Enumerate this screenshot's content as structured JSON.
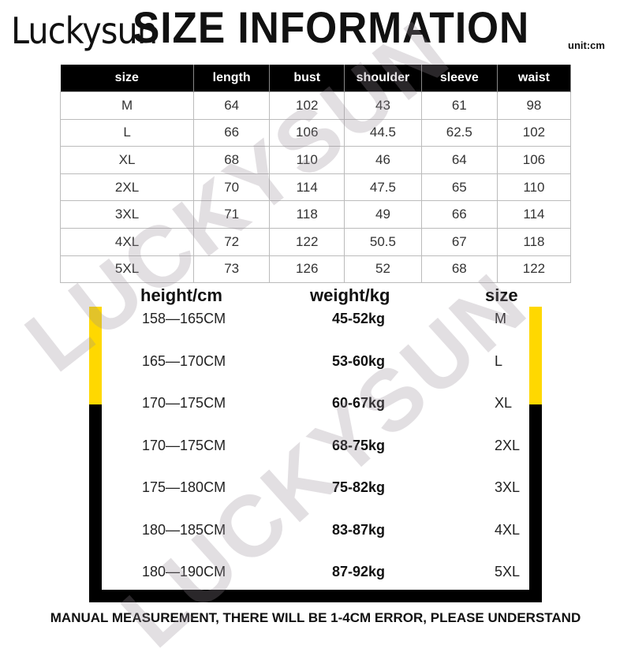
{
  "brand": "Luckysun",
  "title": "SIZE INFORMATION",
  "unit": "unit:cm",
  "watermark": "LUCKYSUN",
  "size_table": {
    "headers": [
      "size",
      "length",
      "bust",
      "shoulder",
      "sleeve",
      "waist"
    ],
    "rows": [
      [
        "M",
        "64",
        "102",
        "43",
        "61",
        "98"
      ],
      [
        "L",
        "66",
        "106",
        "44.5",
        "62.5",
        "102"
      ],
      [
        "XL",
        "68",
        "110",
        "46",
        "64",
        "106"
      ],
      [
        "2XL",
        "70",
        "114",
        "47.5",
        "65",
        "110"
      ],
      [
        "3XL",
        "71",
        "118",
        "49",
        "66",
        "114"
      ],
      [
        "4XL",
        "72",
        "122",
        "50.5",
        "67",
        "118"
      ],
      [
        "5XL",
        "73",
        "126",
        "52",
        "68",
        "122"
      ]
    ]
  },
  "fit_table": {
    "headers": [
      "height/cm",
      "weight/kg",
      "size"
    ],
    "rows": [
      [
        "158—165CM",
        "45-52kg",
        "M"
      ],
      [
        "165—170CM",
        "53-60kg",
        "L"
      ],
      [
        "170—175CM",
        "60-67kg",
        "XL"
      ],
      [
        "170—175CM",
        "68-75kg",
        "2XL"
      ],
      [
        "175—180CM",
        "75-82kg",
        "3XL"
      ],
      [
        "180—185CM",
        "83-87kg",
        "4XL"
      ],
      [
        "180—190CM",
        "87-92kg",
        "5XL"
      ]
    ]
  },
  "footer": "MANUAL MEASUREMENT, THERE WILL BE 1-4CM ERROR, PLEASE UNDERSTAND",
  "colors": {
    "accent_yellow": "#ffd800",
    "header_black": "#000000"
  }
}
